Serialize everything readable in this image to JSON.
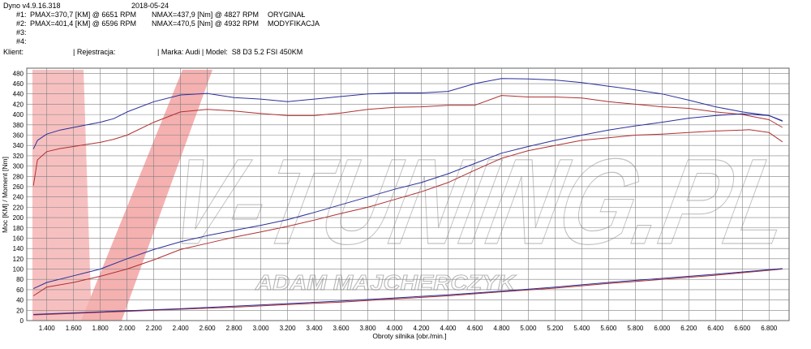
{
  "header": {
    "software": "Dyno v4.9.16.318",
    "date": "2018-05-24",
    "runs": [
      {
        "num": "#1:",
        "pmax": "PMAX=370,7 [KM] @ 6651 RPM",
        "nmax": "NMAX=437,9 [Nm] @ 4827 RPM",
        "label": "ORYGINAŁ"
      },
      {
        "num": "#2:",
        "pmax": "PMAX=401,4 [KM] @ 6596 RPM",
        "nmax": "NMAX=470,5 [Nm] @ 4932 RPM",
        "label": "MODYFIKACJA"
      },
      {
        "num": "#3:",
        "pmax": "",
        "nmax": "",
        "label": ""
      },
      {
        "num": "#4:",
        "pmax": "",
        "nmax": "",
        "label": ""
      }
    ],
    "klient": "Klient:",
    "rejestracja": "| Rejestracja:",
    "marka_model": "| Marka: Audi | Model:  S8 D3 5.2 FSI 450KM"
  },
  "watermark": {
    "brand": "V-TUNING.PL",
    "name": "ADAM MAJCHERCZYK"
  },
  "colors": {
    "run1": "#b03030",
    "run2": "#2a2f9a",
    "grid": "#808080",
    "watermark_red": "#f08080"
  },
  "chart_data": {
    "type": "line",
    "xlabel": "Obroty silnika [obr./min.]",
    "ylabel": "Moc [KM] / Moment [Nm]",
    "xlim": [
      1250,
      6950
    ],
    "ylim": [
      0,
      490
    ],
    "xticks": [
      "1.400",
      "1.600",
      "1.800",
      "2.000",
      "2.200",
      "2.400",
      "2.600",
      "2.800",
      "3.000",
      "3.200",
      "3.400",
      "3.600",
      "3.800",
      "4.000",
      "4.200",
      "4.400",
      "4.600",
      "4.800",
      "5.000",
      "5.200",
      "5.400",
      "5.600",
      "5.800",
      "6.000",
      "6.200",
      "6.400",
      "6.600",
      "6.800"
    ],
    "yticks": [
      0,
      20,
      40,
      60,
      80,
      100,
      120,
      140,
      160,
      180,
      200,
      220,
      240,
      260,
      280,
      300,
      320,
      340,
      360,
      380,
      400,
      420,
      440,
      460,
      480
    ],
    "series": [
      {
        "run": "#1",
        "quantity": "torque",
        "x": [
          1300,
          1330,
          1400,
          1500,
          1600,
          1700,
          1800,
          1900,
          2000,
          2200,
          2400,
          2600,
          2800,
          3000,
          3200,
          3400,
          3600,
          3800,
          4000,
          4200,
          4400,
          4600,
          4800,
          5000,
          5200,
          5400,
          5600,
          5800,
          6000,
          6200,
          6400,
          6600,
          6800,
          6900
        ],
        "y": [
          262,
          312,
          328,
          334,
          338,
          342,
          346,
          352,
          360,
          385,
          405,
          410,
          407,
          402,
          398,
          398,
          403,
          410,
          414,
          415,
          418,
          418,
          437,
          434,
          434,
          432,
          425,
          420,
          415,
          412,
          405,
          400,
          390,
          375
        ]
      },
      {
        "run": "#2",
        "quantity": "torque",
        "x": [
          1300,
          1330,
          1400,
          1500,
          1600,
          1700,
          1800,
          1900,
          2000,
          2200,
          2400,
          2600,
          2800,
          3000,
          3200,
          3400,
          3600,
          3800,
          4000,
          4200,
          4400,
          4600,
          4800,
          5000,
          5200,
          5400,
          5600,
          5800,
          6000,
          6200,
          6400,
          6600,
          6800,
          6900
        ],
        "y": [
          333,
          350,
          362,
          370,
          375,
          380,
          385,
          392,
          405,
          425,
          438,
          441,
          433,
          430,
          425,
          430,
          435,
          440,
          442,
          442,
          445,
          460,
          470,
          469,
          467,
          462,
          455,
          448,
          440,
          428,
          415,
          405,
          398,
          387
        ]
      },
      {
        "run": "#1",
        "quantity": "power",
        "x": [
          1300,
          1400,
          1600,
          1800,
          2000,
          2200,
          2400,
          2600,
          2800,
          3000,
          3200,
          3400,
          3600,
          3800,
          4000,
          4200,
          4400,
          4600,
          4800,
          5000,
          5200,
          5400,
          5600,
          5800,
          6000,
          6200,
          6400,
          6600,
          6651,
          6800,
          6900
        ],
        "y": [
          48,
          65,
          74,
          86,
          100,
          118,
          138,
          150,
          162,
          172,
          183,
          195,
          208,
          220,
          235,
          250,
          268,
          292,
          315,
          330,
          340,
          350,
          355,
          360,
          362,
          365,
          368,
          370,
          370.7,
          365,
          347
        ]
      },
      {
        "run": "#2",
        "quantity": "power",
        "x": [
          1300,
          1400,
          1600,
          1800,
          2000,
          2200,
          2400,
          2600,
          2800,
          3000,
          3200,
          3400,
          3600,
          3800,
          4000,
          4200,
          4400,
          4600,
          4800,
          5000,
          5200,
          5400,
          5600,
          5800,
          6000,
          6200,
          6400,
          6596,
          6800,
          6900
        ],
        "y": [
          62,
          74,
          87,
          100,
          120,
          138,
          153,
          165,
          175,
          185,
          196,
          210,
          225,
          240,
          255,
          268,
          285,
          305,
          325,
          338,
          350,
          360,
          370,
          378,
          385,
          393,
          398,
          401.4,
          398,
          388
        ]
      },
      {
        "run": "#1",
        "quantity": "loss",
        "x": [
          1300,
          1600,
          2000,
          2400,
          2800,
          3200,
          3600,
          4000,
          4400,
          4800,
          5200,
          5600,
          6000,
          6400,
          6900
        ],
        "y": [
          11,
          14,
          18,
          22,
          26,
          31,
          36,
          42,
          48,
          56,
          63,
          72,
          80,
          88,
          100
        ]
      },
      {
        "run": "#2",
        "quantity": "loss",
        "x": [
          1300,
          1600,
          2000,
          2400,
          2800,
          3200,
          3600,
          4000,
          4400,
          4800,
          5200,
          5600,
          6000,
          6400,
          6900
        ],
        "y": [
          12,
          15,
          19,
          23,
          28,
          33,
          38,
          44,
          50,
          57,
          65,
          74,
          82,
          90,
          101
        ]
      }
    ],
    "grid": true
  }
}
